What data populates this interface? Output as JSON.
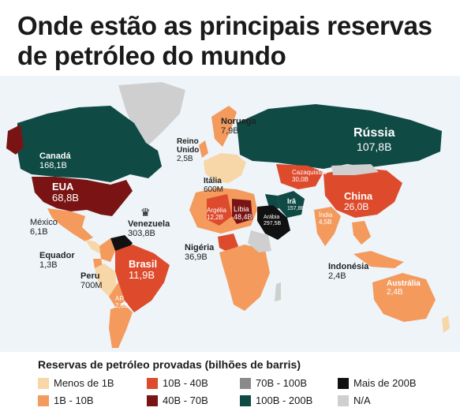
{
  "title": "Onde estão as principais reservas de petróleo do mundo",
  "colors": {
    "ocean": "#e9f1f7",
    "lt1b": "#f7d6a8",
    "b1_10": "#f39a5c",
    "b10_40": "#de4a2c",
    "b40_70": "#7a1414",
    "b70_100": "#8a8a8a",
    "b100_200": "#0f4a45",
    "gt200": "#111111",
    "na": "#cfcfcf"
  },
  "labels": {
    "russia": {
      "name": "Rússia",
      "value": "107,8B"
    },
    "canada": {
      "name": "Canadá",
      "value": "168,1B"
    },
    "eua": {
      "name": "EUA",
      "value": "68,8B"
    },
    "mexico": {
      "name": "México",
      "value": "6,1B"
    },
    "venezuela": {
      "name": "Venezuela",
      "value": "303,8B"
    },
    "equador": {
      "name": "Equador",
      "value": "1,3B"
    },
    "peru": {
      "name": "Peru",
      "value": "700M"
    },
    "brasil": {
      "name": "Brasil",
      "value": "11,9B"
    },
    "ar": {
      "name": "AR",
      "value": "2,5B"
    },
    "noruega": {
      "name": "Noruega",
      "value": "7,9B"
    },
    "reino_unido": {
      "name": "Reino Unido",
      "value": "2,5B"
    },
    "italia": {
      "name": "Itália",
      "value": "600M"
    },
    "argelia": {
      "name": "Argélia",
      "value": "12,2B"
    },
    "libia": {
      "name": "Líbia",
      "value": "48,4B"
    },
    "nigeria": {
      "name": "Nigéria",
      "value": "36,9B"
    },
    "cazaquistao": {
      "name": "Cazaquistão",
      "value": "30,0B"
    },
    "ira": {
      "name": "Irã",
      "value": "157,8B"
    },
    "arabia": {
      "name": "Arábia",
      "value": "297,5B"
    },
    "china": {
      "name": "China",
      "value": "26,0B"
    },
    "india": {
      "name": "Índia",
      "value": "4,5B"
    },
    "indonesia": {
      "name": "Indonésia",
      "value": "2,4B"
    },
    "australia": {
      "name": "Austrália",
      "value": "2,4B"
    }
  },
  "legend": {
    "title": "Reservas de petróleo provadas (bilhões de barris)",
    "items": [
      {
        "label": "Menos de 1B",
        "color": "#f7d6a8"
      },
      {
        "label": "10B - 40B",
        "color": "#de4a2c"
      },
      {
        "label": "70B - 100B",
        "color": "#8a8a8a"
      },
      {
        "label": "Mais de 200B",
        "color": "#111111"
      },
      {
        "label": "1B - 10B",
        "color": "#f39a5c"
      },
      {
        "label": "40B - 70B",
        "color": "#7a1414"
      },
      {
        "label": "100B - 200B",
        "color": "#0f4a45"
      },
      {
        "label": "N/A",
        "color": "#cfcfcf"
      }
    ]
  }
}
